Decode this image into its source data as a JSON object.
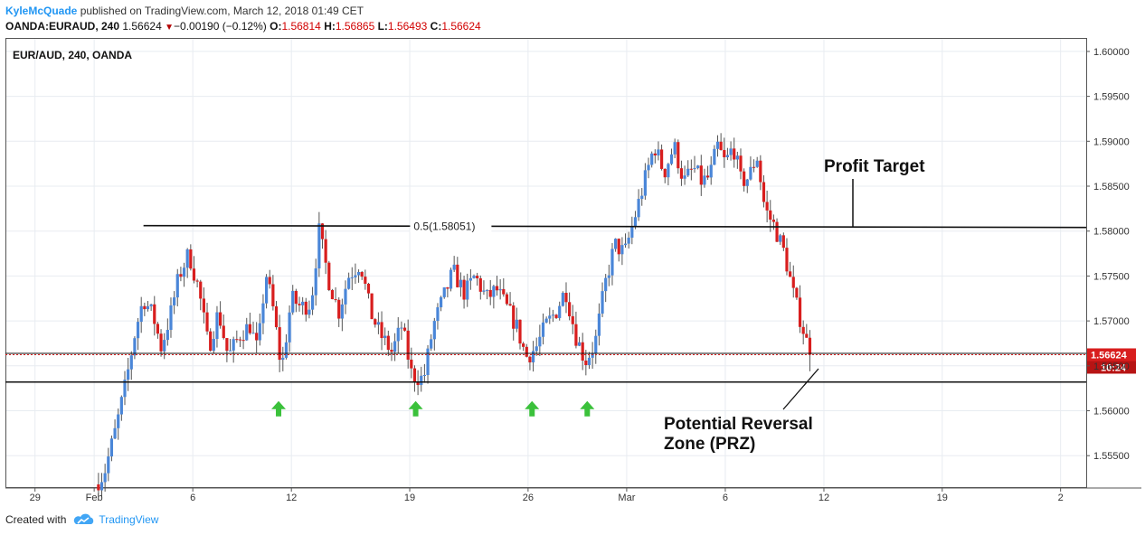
{
  "header": {
    "author": "KyleMcQuade",
    "published_text": "published on TradingView.com, March 12, 2018 01:49 CET",
    "symbol": "OANDA:EURAUD, 240",
    "last": "1.56624",
    "change_arrow": "▼",
    "change": "−0.00190 (−0.12%)",
    "open_label": "O:",
    "open": "1.56814",
    "high_label": "H:",
    "high": "1.56865",
    "low_label": "L:",
    "low": "1.56493",
    "close_label": "C:",
    "close": "1.56624"
  },
  "footer": {
    "created_with": "Created with",
    "brand": "TradingView",
    "icon": "tradingview-cloud-icon"
  },
  "colors": {
    "up": "#4a86d8",
    "down": "#d81e1e",
    "grid": "#e8ecf1",
    "arrow": "#3bc13b",
    "price_line": "#d81e1e"
  },
  "chart_data": {
    "type": "candlestick",
    "title": "EUR/AUD, 240, OANDA",
    "y_ticks": [
      "1.60000",
      "1.59500",
      "1.59000",
      "1.58500",
      "1.58000",
      "1.57500",
      "1.57000",
      "1.56500",
      "1.56000",
      "1.55500"
    ],
    "y_tick_values": [
      1.6,
      1.595,
      1.59,
      1.585,
      1.58,
      1.575,
      1.57,
      1.565,
      1.56,
      1.555
    ],
    "ylim": [
      1.5515,
      1.6015
    ],
    "x_ticks": [
      "29",
      "Feb",
      "6",
      "12",
      "19",
      "26",
      "Mar",
      "6",
      "12",
      "19",
      "2"
    ],
    "x_tick_positions": [
      -3,
      0,
      5,
      10,
      16,
      22,
      27,
      32,
      37,
      43,
      49
    ],
    "xlim": [
      -4.5,
      50.3
    ],
    "current_price_label": "1.56624",
    "countdown_label": "10:24",
    "current_price": 1.56624,
    "fib_label": "0.5(1.58051)",
    "fib_level": 1.58051,
    "fib_start_x": 2.5,
    "support_level": 1.5632,
    "arrows_x": [
      9.35,
      16.3,
      22.2,
      25.0
    ],
    "annotations": {
      "profit_target": "Profit Target",
      "prz_line1": "Potential Reversal",
      "prz_line2": "Zone (PRZ)"
    },
    "anchors": [
      [
        0.05,
        1.5518
      ],
      [
        0.5,
        1.553
      ],
      [
        1.1,
        1.558
      ],
      [
        1.6,
        1.563
      ],
      [
        2.1,
        1.569
      ],
      [
        2.5,
        1.5725
      ],
      [
        3.0,
        1.5705
      ],
      [
        3.4,
        1.567
      ],
      [
        3.9,
        1.571
      ],
      [
        4.3,
        1.575
      ],
      [
        4.8,
        1.5775
      ],
      [
        5.3,
        1.5735
      ],
      [
        5.8,
        1.567
      ],
      [
        6.3,
        1.571
      ],
      [
        6.8,
        1.566
      ],
      [
        7.4,
        1.5685
      ],
      [
        7.9,
        1.5695
      ],
      [
        8.3,
        1.5665
      ],
      [
        8.7,
        1.5755
      ],
      [
        9.1,
        1.571
      ],
      [
        9.5,
        1.5645
      ],
      [
        10.0,
        1.5725
      ],
      [
        10.5,
        1.5715
      ],
      [
        11.0,
        1.572
      ],
      [
        11.4,
        1.58
      ],
      [
        11.9,
        1.5745
      ],
      [
        12.4,
        1.571
      ],
      [
        12.9,
        1.575
      ],
      [
        13.5,
        1.5765
      ],
      [
        14.0,
        1.571
      ],
      [
        14.5,
        1.5685
      ],
      [
        15.1,
        1.5665
      ],
      [
        15.6,
        1.5695
      ],
      [
        16.1,
        1.564
      ],
      [
        16.7,
        1.5635
      ],
      [
        17.2,
        1.5695
      ],
      [
        17.7,
        1.5725
      ],
      [
        18.2,
        1.5755
      ],
      [
        18.8,
        1.573
      ],
      [
        19.3,
        1.575
      ],
      [
        19.9,
        1.5725
      ],
      [
        20.4,
        1.5735
      ],
      [
        20.9,
        1.5715
      ],
      [
        21.4,
        1.5695
      ],
      [
        21.9,
        1.566
      ],
      [
        22.4,
        1.567
      ],
      [
        22.9,
        1.5695
      ],
      [
        23.4,
        1.571
      ],
      [
        23.9,
        1.5735
      ],
      [
        24.4,
        1.5685
      ],
      [
        24.9,
        1.5655
      ],
      [
        25.4,
        1.5675
      ],
      [
        25.9,
        1.574
      ],
      [
        26.4,
        1.5785
      ],
      [
        26.9,
        1.5775
      ],
      [
        27.4,
        1.5815
      ],
      [
        27.9,
        1.5855
      ],
      [
        28.4,
        1.5895
      ],
      [
        28.9,
        1.5865
      ],
      [
        29.4,
        1.5895
      ],
      [
        29.9,
        1.5855
      ],
      [
        30.4,
        1.587
      ],
      [
        30.8,
        1.5855
      ],
      [
        31.2,
        1.586
      ],
      [
        31.6,
        1.5895
      ],
      [
        32.0,
        1.5875
      ],
      [
        32.4,
        1.5895
      ],
      [
        32.8,
        1.5855
      ],
      [
        33.2,
        1.586
      ],
      [
        33.6,
        1.5885
      ],
      [
        34.0,
        1.5825
      ],
      [
        34.5,
        1.5805
      ],
      [
        35.0,
        1.5775
      ],
      [
        35.5,
        1.5725
      ],
      [
        35.9,
        1.5695
      ],
      [
        36.3,
        1.5662
      ]
    ]
  }
}
